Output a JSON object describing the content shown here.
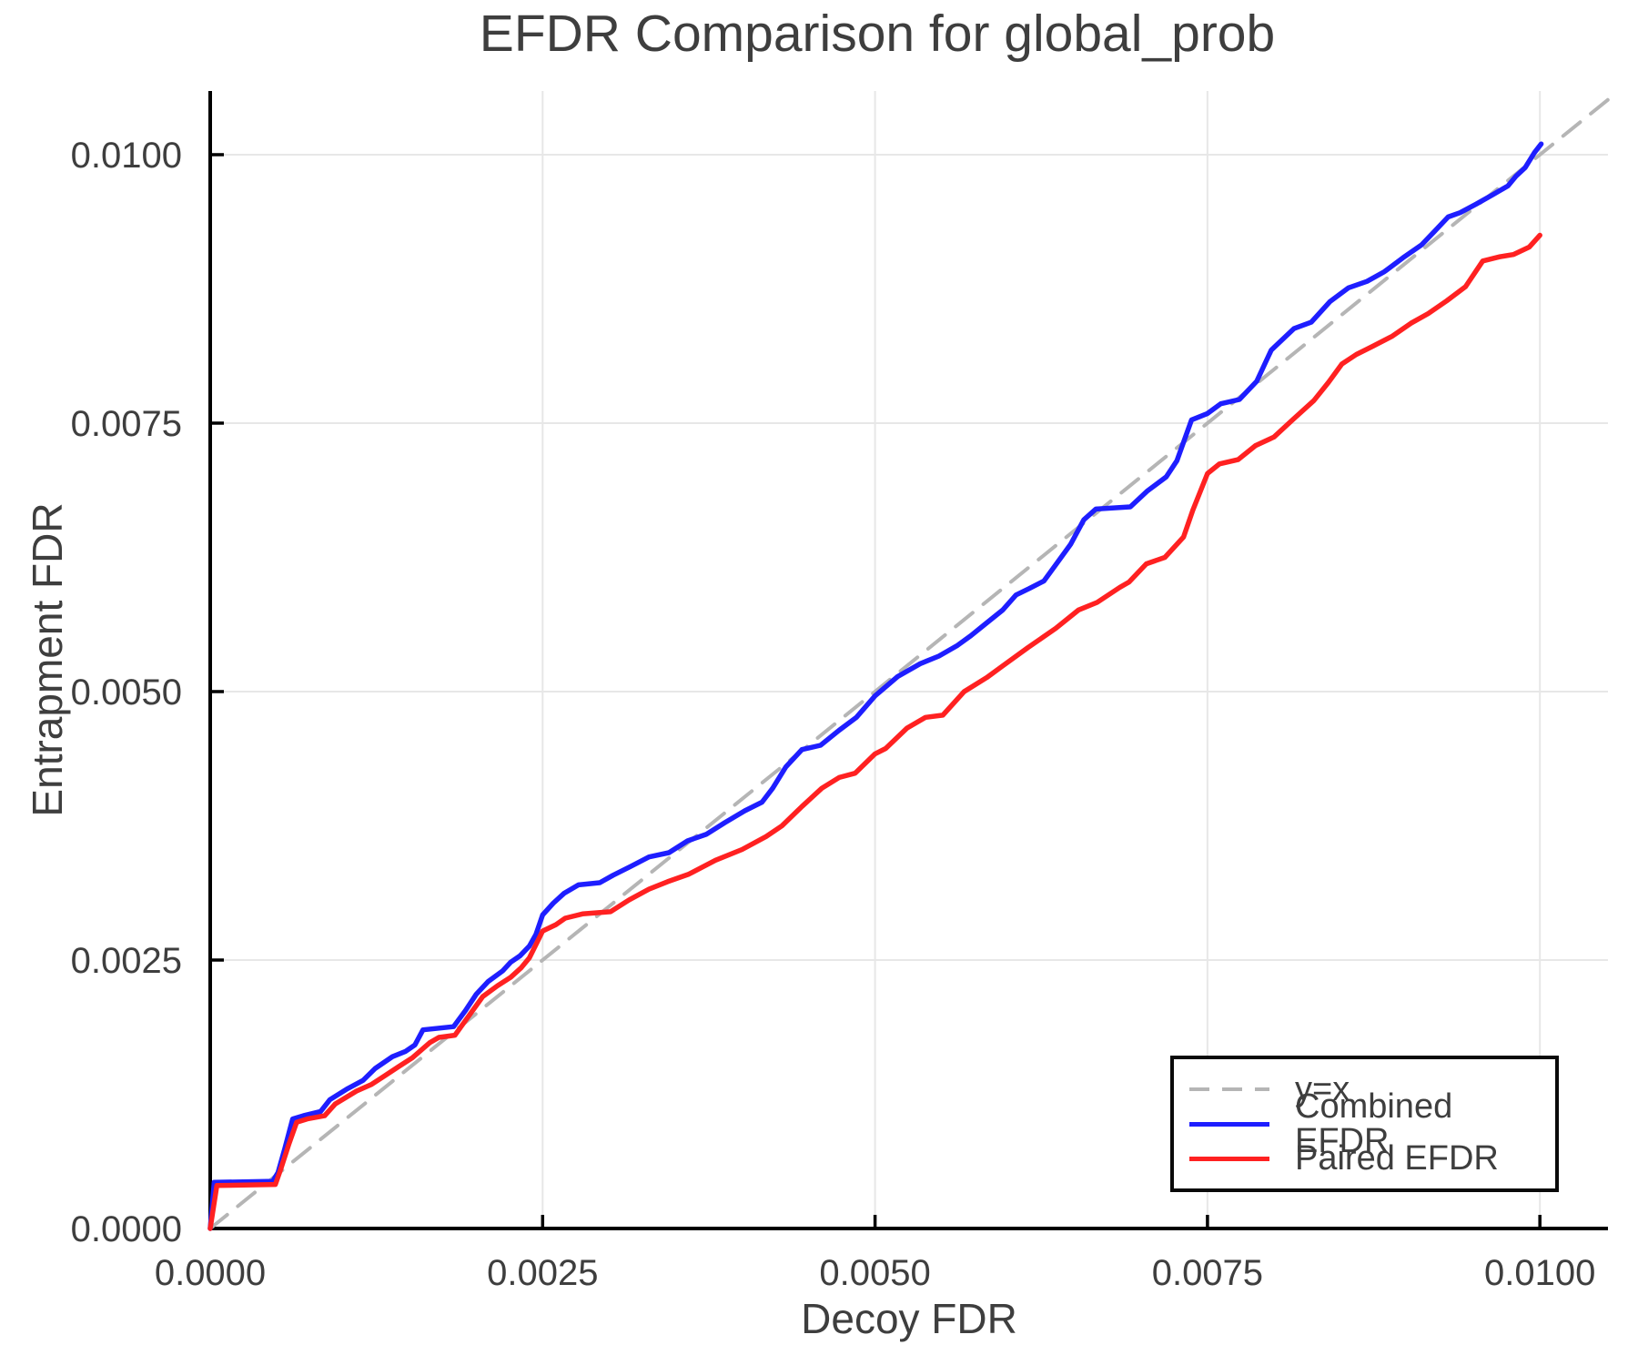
{
  "chart_data": {
    "type": "line",
    "title": "EFDR Comparison for global_prob",
    "xlabel": "Decoy FDR",
    "ylabel": "Entrapment FDR",
    "xlim": [
      0,
      0.010512
    ],
    "ylim": [
      0,
      0.010593
    ],
    "x_ticks": [
      0,
      0.0025,
      0.005,
      0.0075,
      0.01
    ],
    "x_tick_labels": [
      "0.0000",
      "0.0025",
      "0.0050",
      "0.0075",
      "0.0100"
    ],
    "y_ticks": [
      0,
      0.0025,
      0.005,
      0.0075,
      0.01
    ],
    "y_tick_labels": [
      "0.0000",
      "0.0025",
      "0.0050",
      "0.0075",
      "0.0100"
    ],
    "grid": true,
    "legend_position": "lower right",
    "colors": {
      "text": "#3e3e3e",
      "grid": "#e7e7e7",
      "spine": "#000000",
      "background": "#ffffff"
    },
    "series": [
      {
        "name": "y=x",
        "style": "dashed",
        "color": "#b5b5b5",
        "points": [
          [
            0,
            0
          ],
          [
            0.010512,
            0.010512
          ]
        ]
      },
      {
        "name": "Combined EFDR",
        "style": "solid",
        "color": "#1e1eff",
        "points": [
          [
            0,
            0
          ],
          [
            3e-05,
            0.00043
          ],
          [
            0.00047,
            0.00044
          ],
          [
            0.00051,
            0.00052
          ],
          [
            0.00056,
            0.00074
          ],
          [
            0.00062,
            0.00102
          ],
          [
            0.0007,
            0.00105
          ],
          [
            0.00083,
            0.00109
          ],
          [
            0.0009,
            0.0012
          ],
          [
            0.00103,
            0.0013
          ],
          [
            0.00115,
            0.00138
          ],
          [
            0.00124,
            0.00149
          ],
          [
            0.00137,
            0.0016
          ],
          [
            0.00147,
            0.00165
          ],
          [
            0.00154,
            0.00171
          ],
          [
            0.0016,
            0.00185
          ],
          [
            0.00183,
            0.00188
          ],
          [
            0.00192,
            0.00203
          ],
          [
            0.002,
            0.00218
          ],
          [
            0.00209,
            0.0023
          ],
          [
            0.0022,
            0.0024
          ],
          [
            0.00226,
            0.00248
          ],
          [
            0.00233,
            0.00254
          ],
          [
            0.0024,
            0.00263
          ],
          [
            0.00245,
            0.00274
          ],
          [
            0.0025,
            0.00292
          ],
          [
            0.00258,
            0.00303
          ],
          [
            0.00266,
            0.00312
          ],
          [
            0.00277,
            0.0032
          ],
          [
            0.00293,
            0.00322
          ],
          [
            0.00303,
            0.00329
          ],
          [
            0.00316,
            0.00337
          ],
          [
            0.0033,
            0.00346
          ],
          [
            0.00345,
            0.0035
          ],
          [
            0.00359,
            0.00361
          ],
          [
            0.00373,
            0.00367
          ],
          [
            0.00387,
            0.00378
          ],
          [
            0.00402,
            0.00389
          ],
          [
            0.00415,
            0.00397
          ],
          [
            0.00423,
            0.0041
          ],
          [
            0.00433,
            0.0043
          ],
          [
            0.00445,
            0.00446
          ],
          [
            0.00459,
            0.0045
          ],
          [
            0.00473,
            0.00464
          ],
          [
            0.00486,
            0.00476
          ],
          [
            0.005,
            0.00496
          ],
          [
            0.00517,
            0.00514
          ],
          [
            0.00534,
            0.00526
          ],
          [
            0.00548,
            0.00533
          ],
          [
            0.00562,
            0.00543
          ],
          [
            0.00572,
            0.00552
          ],
          [
            0.00582,
            0.00562
          ],
          [
            0.00596,
            0.00576
          ],
          [
            0.00606,
            0.0059
          ],
          [
            0.00616,
            0.00596
          ],
          [
            0.00627,
            0.00603
          ],
          [
            0.00637,
            0.0062
          ],
          [
            0.00647,
            0.00637
          ],
          [
            0.00657,
            0.0066
          ],
          [
            0.00666,
            0.0067
          ],
          [
            0.00692,
            0.00672
          ],
          [
            0.00705,
            0.00687
          ],
          [
            0.00719,
            0.007
          ],
          [
            0.00727,
            0.00715
          ],
          [
            0.00738,
            0.00753
          ],
          [
            0.0075,
            0.00759
          ],
          [
            0.0076,
            0.00768
          ],
          [
            0.00774,
            0.00772
          ],
          [
            0.00787,
            0.00789
          ],
          [
            0.00798,
            0.00818
          ],
          [
            0.00815,
            0.00838
          ],
          [
            0.00828,
            0.00844
          ],
          [
            0.00842,
            0.00863
          ],
          [
            0.00856,
            0.00876
          ],
          [
            0.0087,
            0.00882
          ],
          [
            0.00883,
            0.00891
          ],
          [
            0.00897,
            0.00904
          ],
          [
            0.00911,
            0.00916
          ],
          [
            0.00921,
            0.00929
          ],
          [
            0.00931,
            0.00942
          ],
          [
            0.0094,
            0.00946
          ],
          [
            0.00952,
            0.00954
          ],
          [
            0.00965,
            0.00963
          ],
          [
            0.00976,
            0.00971
          ],
          [
            0.00982,
            0.0098
          ],
          [
            0.00989,
            0.00988
          ],
          [
            0.00996,
            0.01002
          ],
          [
            0.01001,
            0.0101
          ]
        ]
      },
      {
        "name": "Paired EFDR",
        "style": "solid",
        "color": "#ff2121",
        "points": [
          [
            0,
            0
          ],
          [
            5e-05,
            0.0004
          ],
          [
            0.00049,
            0.00041
          ],
          [
            0.00053,
            0.00055
          ],
          [
            0.00059,
            0.00078
          ],
          [
            0.00065,
            0.00099
          ],
          [
            0.00073,
            0.00102
          ],
          [
            0.00086,
            0.00105
          ],
          [
            0.00094,
            0.00116
          ],
          [
            0.0011,
            0.00128
          ],
          [
            0.00121,
            0.00134
          ],
          [
            0.00131,
            0.00142
          ],
          [
            0.00142,
            0.00151
          ],
          [
            0.00152,
            0.00159
          ],
          [
            0.00165,
            0.00173
          ],
          [
            0.00172,
            0.00178
          ],
          [
            0.00184,
            0.0018
          ],
          [
            0.00205,
            0.00216
          ],
          [
            0.00216,
            0.00226
          ],
          [
            0.00226,
            0.00234
          ],
          [
            0.00234,
            0.00243
          ],
          [
            0.0024,
            0.00252
          ],
          [
            0.0025,
            0.00277
          ],
          [
            0.0026,
            0.00283
          ],
          [
            0.00267,
            0.00289
          ],
          [
            0.0028,
            0.00293
          ],
          [
            0.00301,
            0.00295
          ],
          [
            0.00315,
            0.00306
          ],
          [
            0.0033,
            0.00316
          ],
          [
            0.00344,
            0.00323
          ],
          [
            0.0036,
            0.0033
          ],
          [
            0.0038,
            0.00343
          ],
          [
            0.004,
            0.00353
          ],
          [
            0.00418,
            0.00365
          ],
          [
            0.0043,
            0.00375
          ],
          [
            0.00445,
            0.00393
          ],
          [
            0.0046,
            0.0041
          ],
          [
            0.00473,
            0.0042
          ],
          [
            0.00485,
            0.00424
          ],
          [
            0.005,
            0.00442
          ],
          [
            0.00508,
            0.00447
          ],
          [
            0.00524,
            0.00466
          ],
          [
            0.00538,
            0.00476
          ],
          [
            0.00551,
            0.00478
          ],
          [
            0.00567,
            0.005
          ],
          [
            0.00584,
            0.00513
          ],
          [
            0.00595,
            0.00523
          ],
          [
            0.00615,
            0.00541
          ],
          [
            0.00636,
            0.00559
          ],
          [
            0.00653,
            0.00576
          ],
          [
            0.00667,
            0.00583
          ],
          [
            0.00684,
            0.00597
          ],
          [
            0.00691,
            0.00602
          ],
          [
            0.00704,
            0.00619
          ],
          [
            0.00718,
            0.00625
          ],
          [
            0.00732,
            0.00644
          ],
          [
            0.00739,
            0.00669
          ],
          [
            0.0075,
            0.00703
          ],
          [
            0.00759,
            0.00712
          ],
          [
            0.00773,
            0.00716
          ],
          [
            0.00786,
            0.00729
          ],
          [
            0.008,
            0.00737
          ],
          [
            0.00814,
            0.00753
          ],
          [
            0.0083,
            0.00771
          ],
          [
            0.00841,
            0.00788
          ],
          [
            0.00851,
            0.00805
          ],
          [
            0.00862,
            0.00814
          ],
          [
            0.00875,
            0.00822
          ],
          [
            0.00889,
            0.00831
          ],
          [
            0.00903,
            0.00843
          ],
          [
            0.00916,
            0.00852
          ],
          [
            0.0093,
            0.00864
          ],
          [
            0.00944,
            0.00877
          ],
          [
            0.00957,
            0.00901
          ],
          [
            0.0097,
            0.00905
          ],
          [
            0.0098,
            0.00907
          ],
          [
            0.00992,
            0.00914
          ],
          [
            0.01,
            0.00925
          ]
        ]
      }
    ]
  }
}
